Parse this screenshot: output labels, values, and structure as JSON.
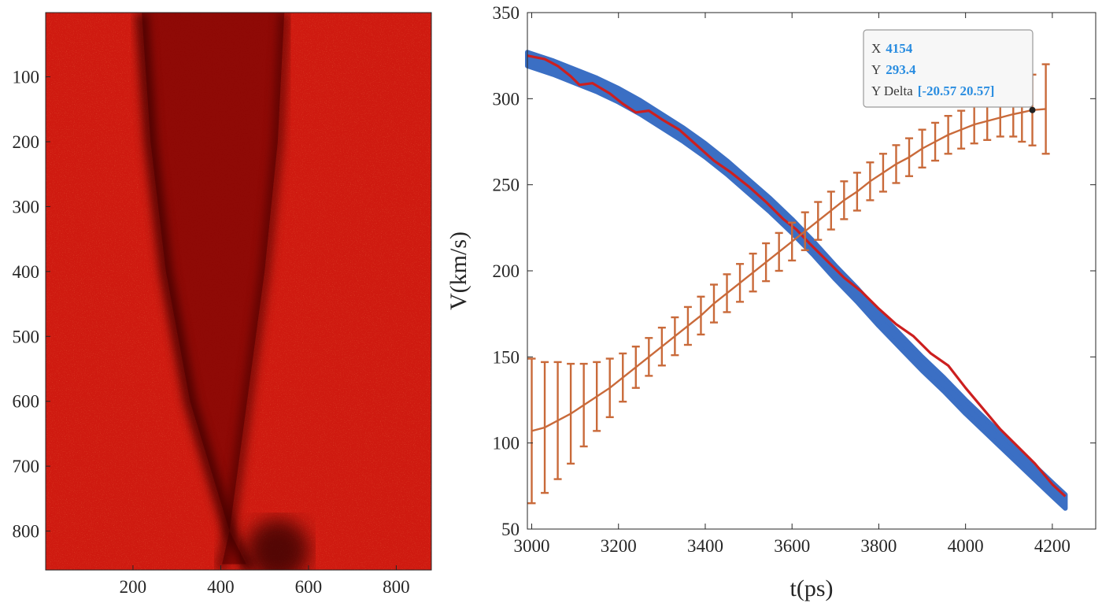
{
  "chart_data": [
    {
      "type": "heatmap",
      "title": "",
      "xlabel": "",
      "ylabel": "",
      "xlim": [
        1,
        880
      ],
      "ylim": [
        1,
        860
      ],
      "y_reversed": true,
      "colormap": "red",
      "xticks": [
        200,
        400,
        600,
        800
      ],
      "yticks": [
        100,
        200,
        300,
        400,
        500,
        600,
        700,
        800
      ],
      "features": {
        "dark_band_left_edge": [
          [
            1,
            220
          ],
          [
            200,
            240
          ],
          [
            400,
            275
          ],
          [
            600,
            330
          ],
          [
            800,
            420
          ],
          [
            860,
            465
          ]
        ],
        "dark_band_right_edge": [
          [
            1,
            545
          ],
          [
            200,
            530
          ],
          [
            400,
            500
          ],
          [
            600,
            460
          ],
          [
            800,
            420
          ],
          [
            860,
            400
          ]
        ]
      }
    },
    {
      "type": "line",
      "title": "",
      "xlabel": "t(ps)",
      "ylabel": "V(km/s)",
      "xlim": [
        2990,
        4300
      ],
      "ylim": [
        50,
        350
      ],
      "xticks": [
        3000,
        3200,
        3400,
        3600,
        3800,
        4000,
        4200
      ],
      "yticks": [
        50,
        100,
        150,
        200,
        250,
        300,
        350
      ],
      "grid": false,
      "series": [
        {
          "kind": "band",
          "color": "#3b6fc4",
          "x": [
            2990,
            3050,
            3100,
            3150,
            3200,
            3250,
            3300,
            3350,
            3400,
            3450,
            3500,
            3550,
            3600,
            3650,
            3700,
            3750,
            3800,
            3850,
            3900,
            3950,
            4000,
            4050,
            4100,
            4150,
            4200,
            4230
          ],
          "y": [
            323,
            318,
            313,
            308,
            302,
            295,
            287,
            279,
            270,
            260,
            249,
            238,
            226,
            213,
            199,
            186,
            172,
            159,
            146,
            134,
            121,
            109,
            97,
            85,
            73,
            66
          ],
          "half_width": 4
        },
        {
          "kind": "line",
          "color": "#cc1f1f",
          "x": [
            2990,
            3030,
            3060,
            3090,
            3110,
            3140,
            3180,
            3210,
            3240,
            3270,
            3300,
            3340,
            3380,
            3420,
            3460,
            3500,
            3540,
            3580,
            3610,
            3640,
            3680,
            3720,
            3760,
            3800,
            3840,
            3880,
            3920,
            3960,
            4000,
            4040,
            4080,
            4120,
            4160,
            4200,
            4230
          ],
          "y": [
            325,
            323,
            319,
            313,
            308,
            309,
            303,
            297,
            292,
            293,
            288,
            282,
            273,
            264,
            257,
            249,
            240,
            230,
            224,
            216,
            206,
            196,
            188,
            178,
            169,
            162,
            152,
            145,
            132,
            120,
            108,
            98,
            88,
            76,
            69
          ]
        },
        {
          "kind": "errorbar",
          "color": "#c96a3a",
          "x": [
            3000,
            3030,
            3060,
            3090,
            3120,
            3150,
            3180,
            3210,
            3240,
            3270,
            3300,
            3330,
            3360,
            3390,
            3420,
            3450,
            3480,
            3510,
            3540,
            3570,
            3600,
            3630,
            3660,
            3690,
            3720,
            3750,
            3780,
            3810,
            3840,
            3870,
            3900,
            3930,
            3960,
            3990,
            4020,
            4050,
            4080,
            4110,
            4130,
            4154,
            4185
          ],
          "y": [
            107,
            109,
            113,
            117,
            122,
            127,
            132,
            138,
            144,
            150,
            156,
            162,
            168,
            174,
            181,
            187,
            193,
            199,
            205,
            211,
            217,
            223,
            229,
            235,
            241,
            246,
            252,
            257,
            262,
            266,
            271,
            275,
            279,
            282,
            285,
            287,
            289,
            291,
            292,
            293.4,
            294
          ],
          "err": [
            42,
            38,
            34,
            29,
            24,
            20,
            17,
            14,
            12,
            11,
            11,
            11,
            11,
            11,
            11,
            11,
            11,
            11,
            11,
            11,
            11,
            11,
            11,
            11,
            11,
            11,
            11,
            11,
            11,
            11,
            11,
            11,
            11,
            11,
            11,
            11,
            11,
            13,
            17,
            20.57,
            26
          ]
        }
      ],
      "datatip": {
        "x_key": "X",
        "x_val": "4154",
        "y_key": "Y",
        "y_val": "293.4",
        "yd_key": "Y Delta",
        "yd_val": "[-20.57 20.57]"
      }
    }
  ]
}
